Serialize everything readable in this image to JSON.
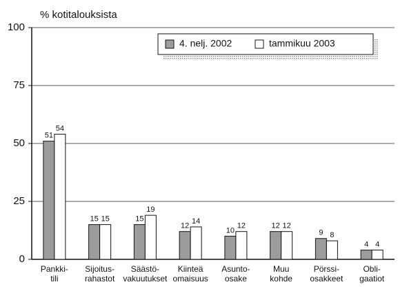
{
  "chart_data": {
    "type": "bar",
    "ylabel": "% kotitalouksista",
    "categories": [
      [
        "Pankki-",
        "tili"
      ],
      [
        "Sijoitus-",
        "rahastot"
      ],
      [
        "Säästö-",
        "vakuutukset"
      ],
      [
        "Kiinteä",
        "omaisuus"
      ],
      [
        "Asunto-",
        "osake"
      ],
      [
        "Muu",
        "kohde"
      ],
      [
        "Pörssi-",
        "osakkeet"
      ],
      [
        "Obli-",
        "gaatiot"
      ]
    ],
    "series": [
      {
        "name": "4. nelj. 2002",
        "color": "#9c9c9c",
        "values": [
          51,
          15,
          15,
          12,
          10,
          12,
          9,
          4
        ]
      },
      {
        "name": "tammikuu 2003",
        "color": "#ffffff",
        "values": [
          54,
          15,
          19,
          14,
          12,
          12,
          8,
          4
        ]
      }
    ],
    "ylim": [
      0,
      100
    ],
    "yticks": [
      0,
      25,
      50,
      75,
      100
    ],
    "grid": true
  }
}
